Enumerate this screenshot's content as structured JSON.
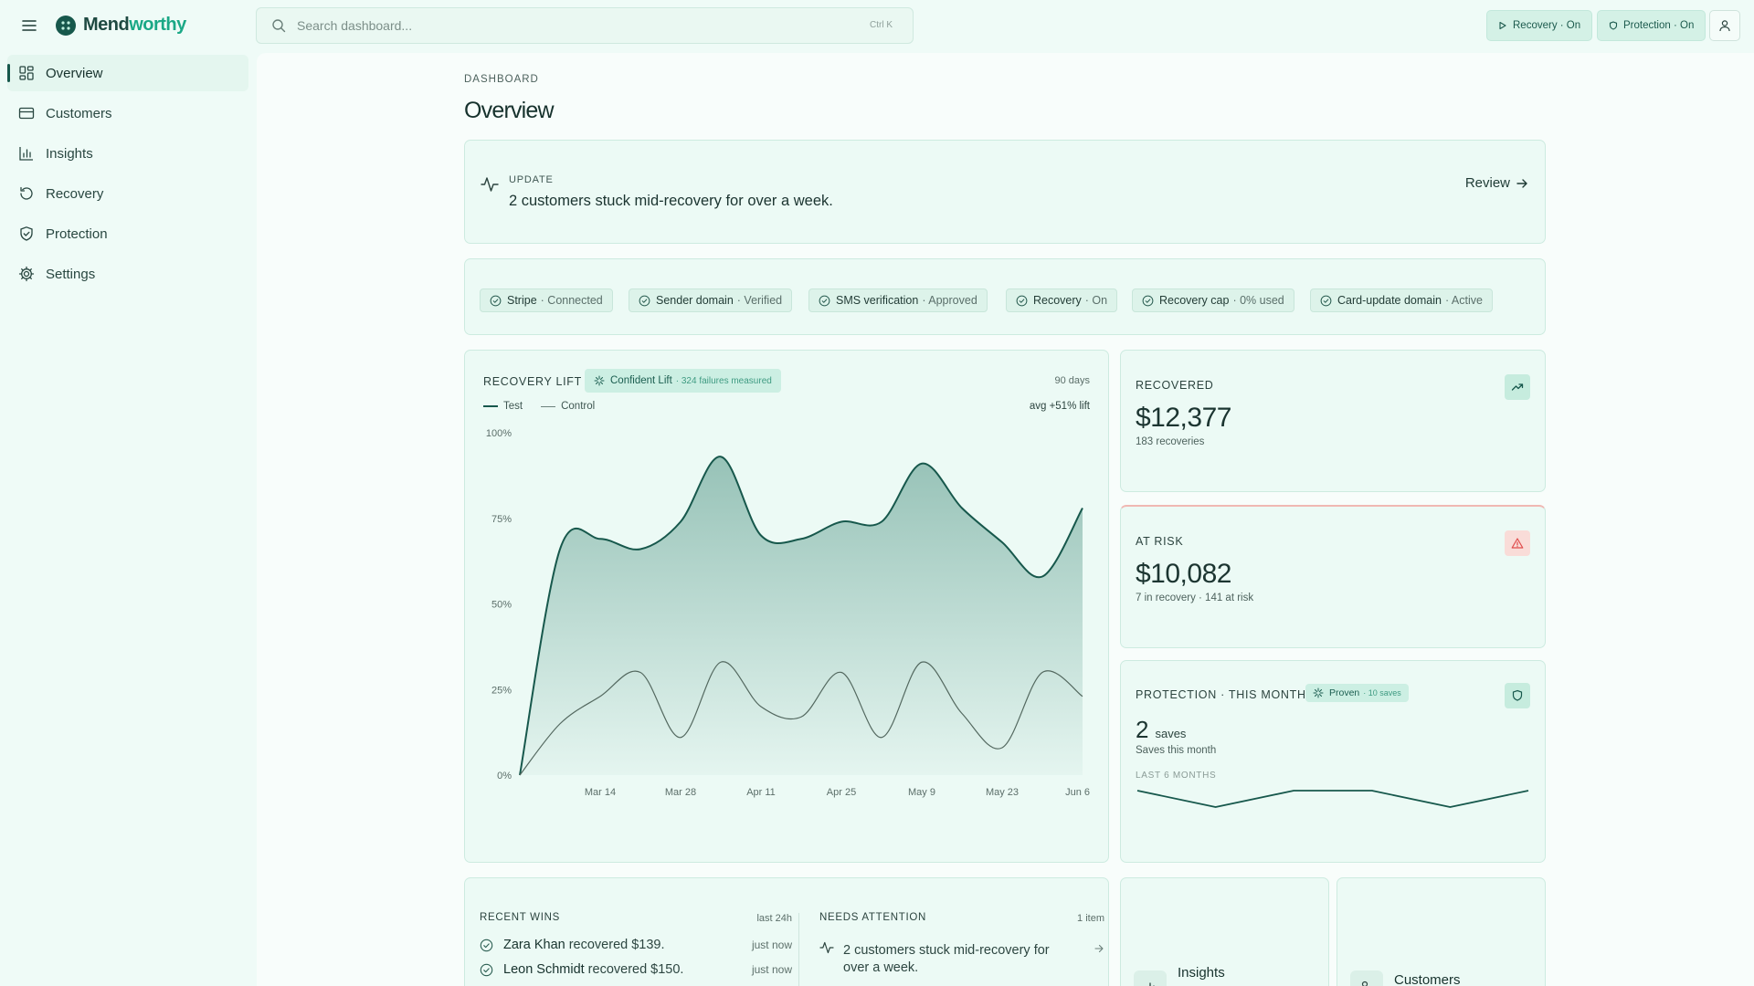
{
  "app": {
    "name_prefix": "Mend",
    "name_suffix": "worthy"
  },
  "search": {
    "placeholder": "Search dashboard...",
    "shortcut": "Ctrl K"
  },
  "topbar": {
    "recovery_label": "Recovery · On",
    "protection_label": "Protection · On"
  },
  "sidebar": {
    "items": [
      {
        "label": "Overview",
        "icon": "grid-icon"
      },
      {
        "label": "Customers",
        "icon": "card-icon"
      },
      {
        "label": "Insights",
        "icon": "bar-chart-icon"
      },
      {
        "label": "Recovery",
        "icon": "refresh-icon"
      },
      {
        "label": "Protection",
        "icon": "shield-icon"
      },
      {
        "label": "Settings",
        "icon": "gear-icon"
      }
    ]
  },
  "page": {
    "breadcrumb": "DASHBOARD",
    "title": "Overview"
  },
  "update": {
    "label": "UPDATE",
    "text": "2 customers stuck mid-recovery for over a week.",
    "action": "Review"
  },
  "status_chips": [
    {
      "name": "Stripe",
      "status": "· Connected"
    },
    {
      "name": "Sender domain",
      "status": "· Verified"
    },
    {
      "name": "SMS verification",
      "status": "· Approved"
    },
    {
      "name": "Recovery",
      "status": "· On"
    },
    {
      "name": "Recovery cap",
      "status": "· 0% used"
    },
    {
      "name": "Card-update domain",
      "status": "· Active"
    }
  ],
  "recovery_lift": {
    "title": "RECOVERY LIFT",
    "badge": "Confident Lift",
    "badge_sub": "· 324 failures measured",
    "period": "90 days",
    "avg": "avg +51% lift",
    "legend_test": "Test",
    "legend_control": "Control"
  },
  "chart_data": {
    "type": "area",
    "title": "RECOVERY LIFT",
    "x_ticks": [
      "Mar 14",
      "Mar 28",
      "Apr 11",
      "Apr 25",
      "May 9",
      "May 23",
      "Jun 6"
    ],
    "y_ticks": [
      "100%",
      "75%",
      "50%",
      "25%",
      "0%"
    ],
    "ylim": [
      0,
      100
    ],
    "grid": false,
    "legend": "top-left",
    "x": [
      "Mar 6",
      "Mar 10",
      "Mar 14",
      "Mar 21",
      "Mar 28",
      "Apr 4",
      "Apr 11",
      "Apr 18",
      "Apr 25",
      "May 2",
      "May 9",
      "May 16",
      "May 23",
      "May 30",
      "Jun 6"
    ],
    "series": [
      {
        "name": "Test",
        "values": [
          0,
          66,
          69,
          66,
          74,
          93,
          70,
          69,
          74,
          74,
          91,
          78,
          68,
          58,
          78
        ]
      },
      {
        "name": "Control",
        "values": [
          0,
          15,
          23,
          30,
          11,
          33,
          20,
          17,
          30,
          11,
          33,
          18,
          8,
          30,
          23
        ]
      }
    ]
  },
  "recovered": {
    "label": "RECOVERED",
    "value": "$12,377",
    "sub": "183 recoveries"
  },
  "at_risk": {
    "label": "AT RISK",
    "value": "$10,082",
    "sub": "7 in recovery · 141 at risk"
  },
  "protection": {
    "label": "PROTECTION · THIS MONTH",
    "badge": "Proven",
    "badge_sub": "· 10 saves",
    "value": "2",
    "unit": "saves",
    "sub": "Saves this month",
    "sparkline_label": "LAST 6 MONTHS",
    "sparkline_values": [
      3,
      1,
      3,
      3,
      1,
      3
    ]
  },
  "recent_wins": {
    "title": "RECENT WINS",
    "period": "last 24h",
    "rows": [
      {
        "name": "Zara Khan",
        "text": "recovered $139.",
        "time": "just now"
      },
      {
        "name": "Leon Schmidt",
        "text": "recovered $150.",
        "time": "just now"
      }
    ]
  },
  "needs_attention": {
    "title": "NEEDS ATTENTION",
    "count": "1 item",
    "text": "2 customers stuck mid-recovery for over a week."
  },
  "quick_links": {
    "insights": "Insights",
    "customers": "Customers"
  },
  "colors": {
    "accent": "#17584c",
    "brand_accent": "#1aa886",
    "risk": "#e04b4b",
    "background": "#effbf7"
  }
}
